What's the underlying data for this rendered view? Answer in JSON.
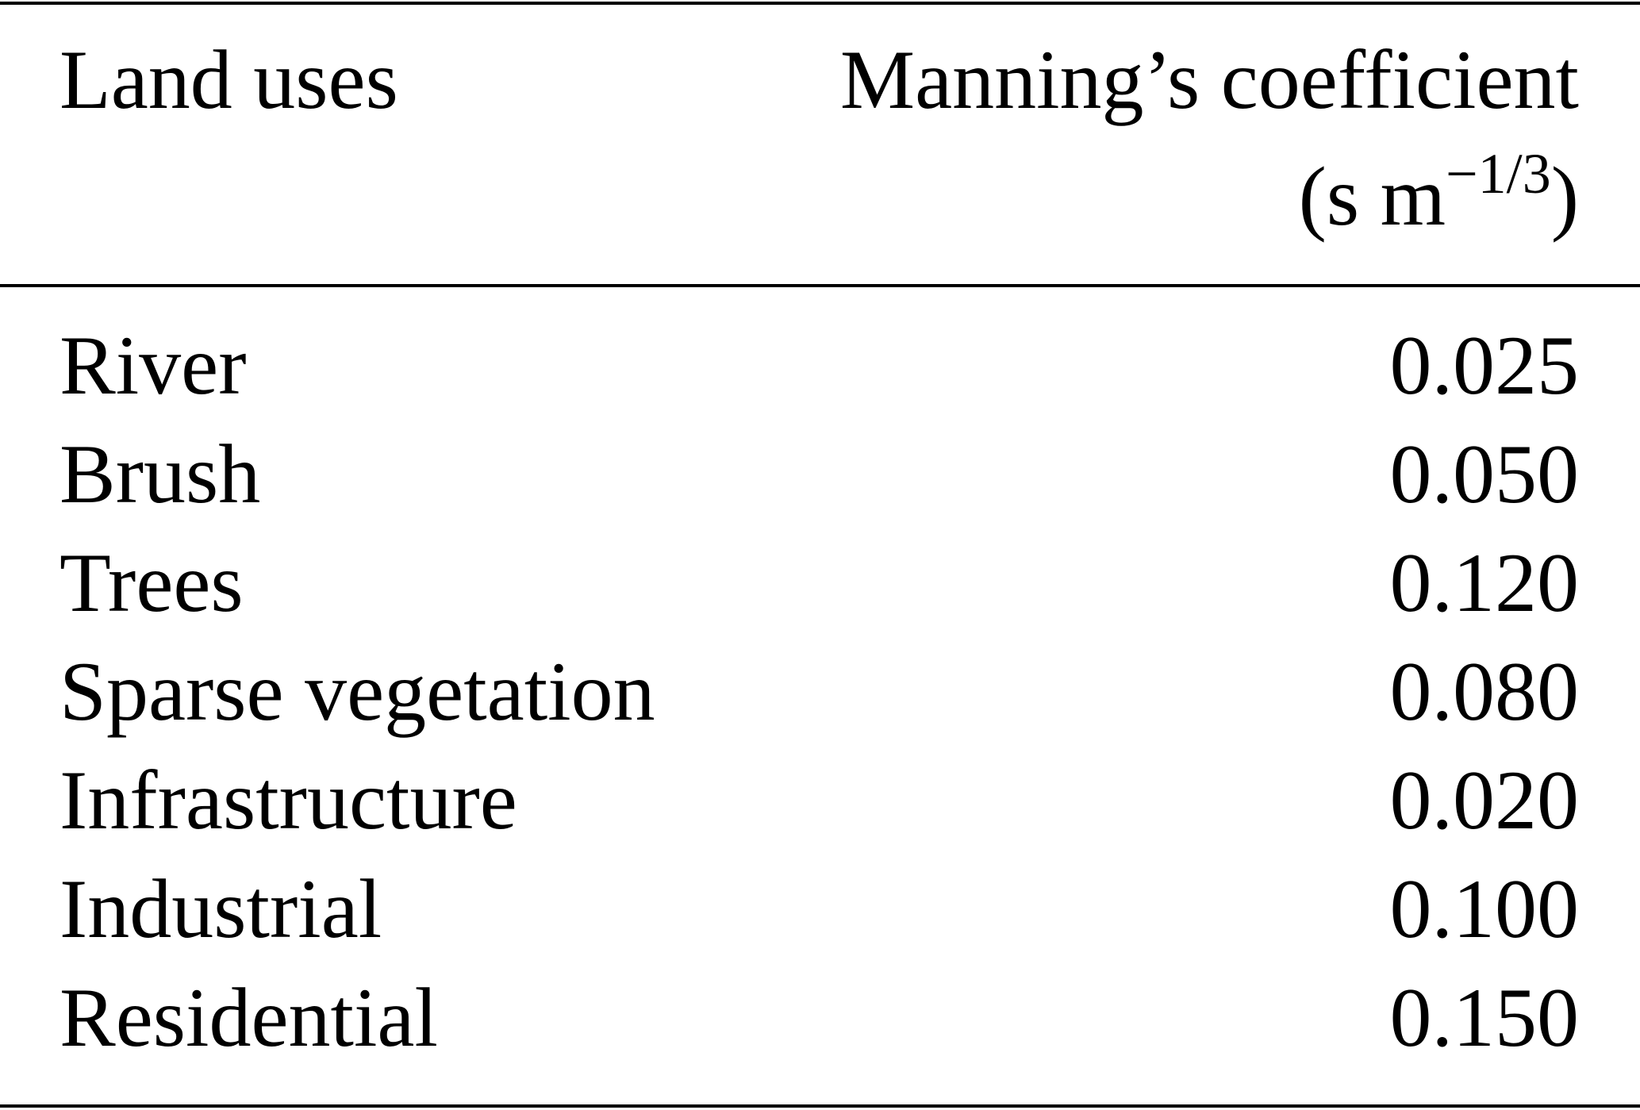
{
  "table": {
    "header": [
      "Land uses",
      "Manning’s coefficient"
    ],
    "unit": {
      "open": "(s m",
      "exponent": "−1/3",
      "close": ")"
    },
    "rows": [
      [
        "River",
        "0.025"
      ],
      [
        "Brush",
        "0.050"
      ],
      [
        "Trees",
        "0.120"
      ],
      [
        "Sparse vegetation",
        "0.080"
      ],
      [
        "Infrastructure",
        "0.020"
      ],
      [
        "Industrial",
        "0.100"
      ],
      [
        "Residential",
        "0.150"
      ]
    ]
  }
}
